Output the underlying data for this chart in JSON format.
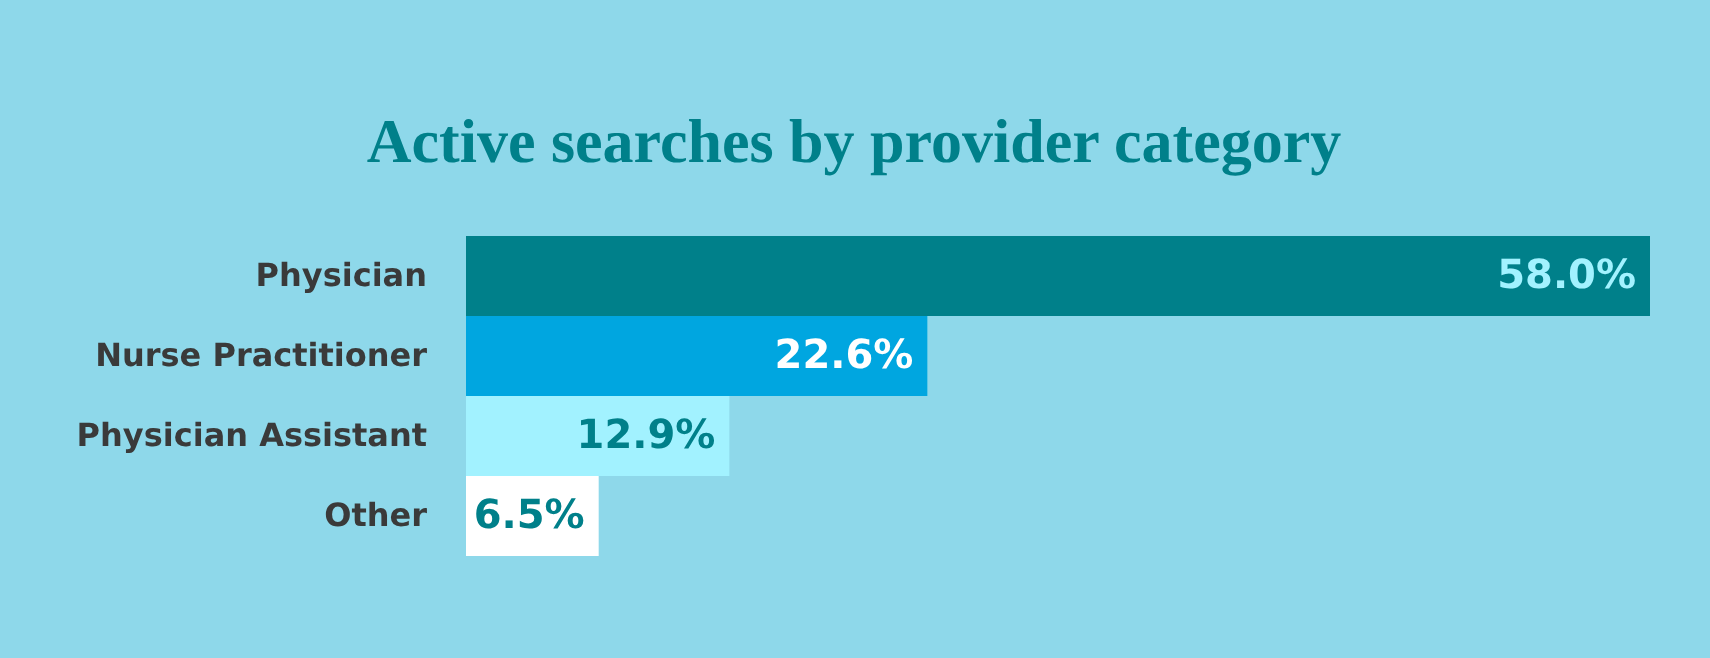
{
  "chart_data": {
    "type": "bar",
    "orientation": "horizontal",
    "title": "Active searches by provider category",
    "categories": [
      "Physician",
      "Nurse Practitioner",
      "Physician Assistant",
      "Other"
    ],
    "values": [
      58.0,
      22.6,
      12.9,
      6.5
    ],
    "colors": [
      "#00808a",
      "#00a6e0",
      "#a2f2ff",
      "#ffffff"
    ],
    "value_labels": [
      "58.0%",
      "22.6%",
      "12.9%",
      "6.5%"
    ],
    "grid": false
  }
}
